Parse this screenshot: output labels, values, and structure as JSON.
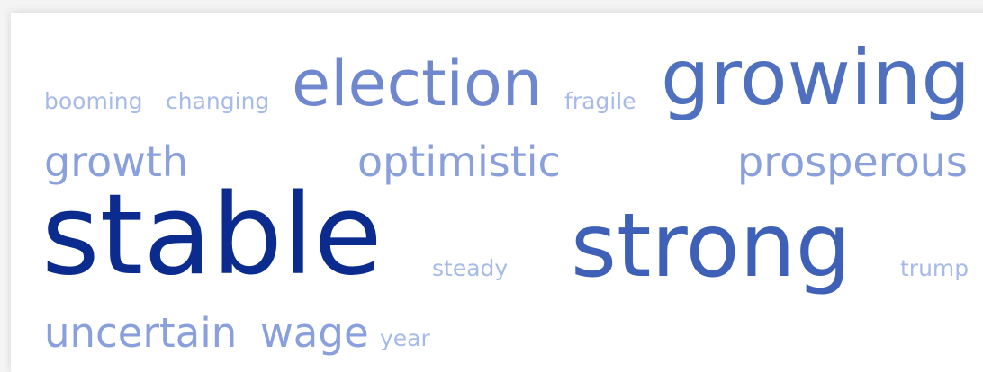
{
  "word_cloud": {
    "words": [
      {
        "text": "booming",
        "color": "#a7bbe9"
      },
      {
        "text": "changing",
        "color": "#a7bbe9"
      },
      {
        "text": "election",
        "color": "#6e87cf"
      },
      {
        "text": "fragile",
        "color": "#a7bbe9"
      },
      {
        "text": "growing",
        "color": "#4f70bf"
      },
      {
        "text": "growth",
        "color": "#8aa0dc"
      },
      {
        "text": "optimistic",
        "color": "#8aa0dc"
      },
      {
        "text": "prosperous",
        "color": "#8aa0dc"
      },
      {
        "text": "stable",
        "color": "#0b2c8e"
      },
      {
        "text": "steady",
        "color": "#a7bbe9"
      },
      {
        "text": "strong",
        "color": "#3e60b6"
      },
      {
        "text": "trump",
        "color": "#a7bbe9"
      },
      {
        "text": "uncertain",
        "color": "#8aa0dc"
      },
      {
        "text": "wage",
        "color": "#8aa0dc"
      },
      {
        "text": "year",
        "color": "#a7bbe9"
      }
    ]
  }
}
